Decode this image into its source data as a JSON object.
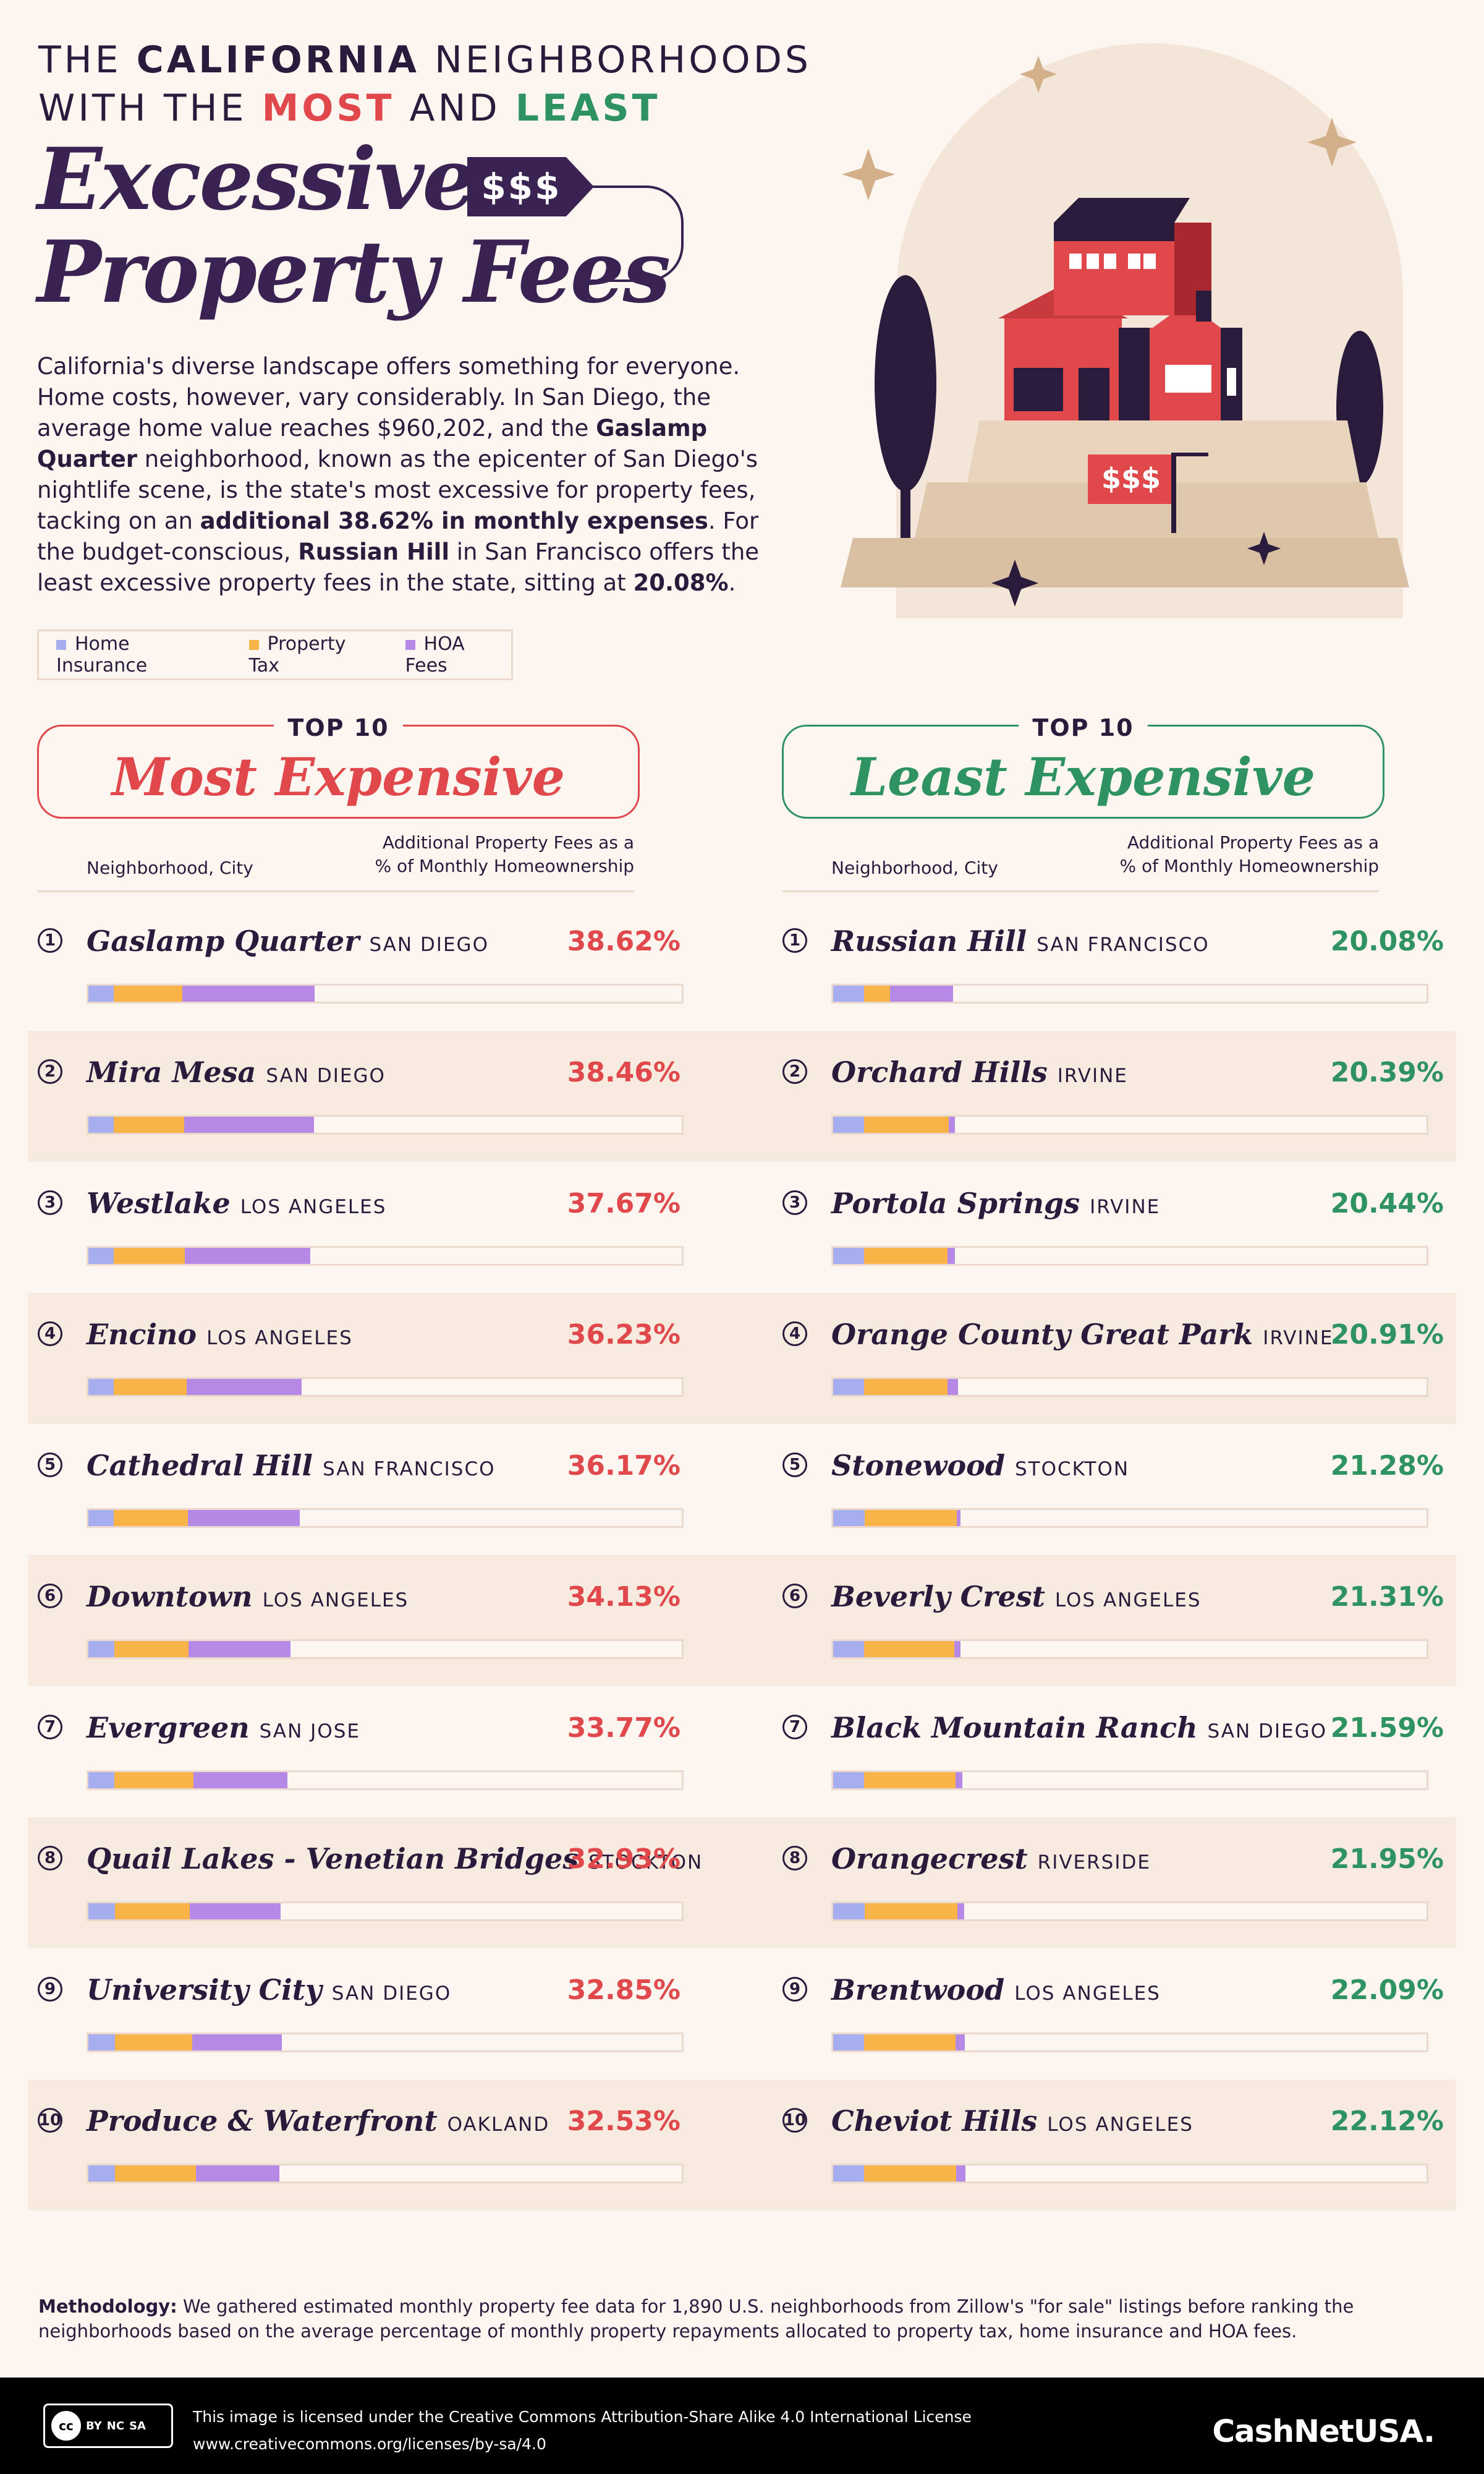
{
  "header": {
    "line1_pre": "THE ",
    "line1_bold": "CALIFORNIA",
    "line1_post": " NEIGHBORHOODS",
    "line2_pre": "WITH THE ",
    "line2_most": "MOST",
    "line2_mid": " AND ",
    "line2_least": "LEAST",
    "title_line1": "Excessive",
    "title_line2": "Property Fees",
    "tag": "$$$",
    "sign": "$$$"
  },
  "intro": {
    "p1": "California's diverse landscape offers something for everyone. Home costs, however, vary considerably. In San Diego, the average home value reaches $960,202, and the ",
    "b1": "Gaslamp Quarter",
    "p2": " neighborhood, known as the epicenter of San Diego's nightlife scene, is the state's most excessive for property fees, tacking on an ",
    "b2": "additional 38.62% in monthly expenses",
    "p3": ". For the budget-conscious, ",
    "b3": "Russian Hill",
    "p4": " in San Francisco offers the least excessive property fees in the state, sitting at ",
    "b4": "20.08%",
    "p5": "."
  },
  "legend": [
    {
      "label": "Home Insurance",
      "color": "#a6aef0"
    },
    {
      "label": "Property Tax",
      "color": "#f8b447"
    },
    {
      "label": "HOA Fees",
      "color": "#b689e6"
    }
  ],
  "sections": {
    "most": {
      "top": "TOP 10",
      "label": "Most Expensive",
      "color": "#e0484c"
    },
    "least": {
      "top": "TOP 10",
      "label": "Least Expensive",
      "color": "#2e9360"
    }
  },
  "colheads": {
    "left": "Neighborhood, City",
    "right1": "Additional Property Fees as a",
    "right2": "% of Monthly Homeownership"
  },
  "chart_data": [
    {
      "type": "bar",
      "title": "Most Expensive",
      "categories": [
        "Gaslamp Quarter SAN DIEGO",
        "Mira Mesa SAN DIEGO",
        "Westlake LOS ANGELES",
        "Encino LOS ANGELES",
        "Cathedral Hill SAN FRANCISCO",
        "Downtown LOS ANGELES",
        "Evergreen SAN JOSE",
        "Quail Lakes - Venetian Bridges STOCKTON",
        "University City SAN DIEGO",
        "Produce & Waterfront OAKLAND"
      ],
      "rows": [
        {
          "rank": "1",
          "name": "Gaslamp Quarter",
          "city": "SAN DIEGO",
          "value": "38.62%",
          "ins": 4.2,
          "tax": 11.5,
          "hoa": 22.2
        },
        {
          "rank": "2",
          "name": "Mira Mesa",
          "city": "SAN DIEGO",
          "value": "38.46%",
          "ins": 4.2,
          "tax": 11.8,
          "hoa": 21.8
        },
        {
          "rank": "3",
          "name": "Westlake",
          "city": "LOS ANGELES",
          "value": "37.67%",
          "ins": 4.2,
          "tax": 12.0,
          "hoa": 21.0
        },
        {
          "rank": "4",
          "name": "Encino",
          "city": "LOS ANGELES",
          "value": "36.23%",
          "ins": 4.2,
          "tax": 12.3,
          "hoa": 19.2
        },
        {
          "rank": "5",
          "name": "Cathedral Hill",
          "city": "SAN FRANCISCO",
          "value": "36.17%",
          "ins": 4.2,
          "tax": 12.5,
          "hoa": 18.7
        },
        {
          "rank": "6",
          "name": "Downtown",
          "city": "LOS ANGELES",
          "value": "34.13%",
          "ins": 4.3,
          "tax": 12.5,
          "hoa": 17.0
        },
        {
          "rank": "7",
          "name": "Evergreen",
          "city": "SAN JOSE",
          "value": "33.77%",
          "ins": 4.3,
          "tax": 13.3,
          "hoa": 15.7
        },
        {
          "rank": "8",
          "name": "Quail Lakes - Venetian Bridges",
          "city": "STOCKTON",
          "value": "32.93%",
          "ins": 4.5,
          "tax": 12.5,
          "hoa": 15.2
        },
        {
          "rank": "9",
          "name": "University City",
          "city": "SAN DIEGO",
          "value": "32.85%",
          "ins": 4.5,
          "tax": 12.9,
          "hoa": 15.0
        },
        {
          "rank": "10",
          "name": "Produce & Waterfront",
          "city": "OAKLAND",
          "value": "32.53%",
          "ins": 4.5,
          "tax": 13.5,
          "hoa": 14.0
        }
      ],
      "series": [
        {
          "name": "Home Insurance"
        },
        {
          "name": "Property Tax"
        },
        {
          "name": "HOA Fees"
        }
      ]
    },
    {
      "type": "bar",
      "title": "Least Expensive",
      "categories": [
        "Russian Hill SAN FRANCISCO",
        "Orchard Hills IRVINE",
        "Portola Springs IRVINE",
        "Orange County Great Park IRVINE",
        "Stonewood STOCKTON",
        "Beverly Crest LOS ANGELES",
        "Black Mountain Ranch SAN DIEGO",
        "Orangecrest RIVERSIDE",
        "Brentwood LOS ANGELES",
        "Cheviot Hills LOS ANGELES"
      ],
      "rows": [
        {
          "rank": "1",
          "name": "Russian Hill",
          "city": "SAN FRANCISCO",
          "value": "20.08%",
          "ins": 5.2,
          "tax": 4.3,
          "hoa": 10.58
        },
        {
          "rank": "2",
          "name": "Orchard Hills",
          "city": "IRVINE",
          "value": "20.39%",
          "ins": 5.2,
          "tax": 14.2,
          "hoa": 0.99
        },
        {
          "rank": "3",
          "name": "Portola Springs",
          "city": "IRVINE",
          "value": "20.44%",
          "ins": 5.2,
          "tax": 14.0,
          "hoa": 1.24
        },
        {
          "rank": "4",
          "name": "Orange County Great Park",
          "city": "IRVINE",
          "value": "20.91%",
          "ins": 5.2,
          "tax": 14.0,
          "hoa": 1.71
        },
        {
          "rank": "5",
          "name": "Stonewood",
          "city": "STOCKTON",
          "value": "21.28%",
          "ins": 5.3,
          "tax": 15.4,
          "hoa": 0.58
        },
        {
          "rank": "6",
          "name": "Beverly Crest",
          "city": "LOS ANGELES",
          "value": "21.31%",
          "ins": 5.2,
          "tax": 15.1,
          "hoa": 1.01
        },
        {
          "rank": "7",
          "name": "Black Mountain Ranch",
          "city": "SAN DIEGO",
          "value": "21.59%",
          "ins": 5.2,
          "tax": 15.3,
          "hoa": 1.09
        },
        {
          "rank": "8",
          "name": "Orangecrest",
          "city": "RIVERSIDE",
          "value": "21.95%",
          "ins": 5.3,
          "tax": 15.5,
          "hoa": 1.15
        },
        {
          "rank": "9",
          "name": "Brentwood",
          "city": "LOS ANGELES",
          "value": "22.09%",
          "ins": 5.2,
          "tax": 15.3,
          "hoa": 1.59
        },
        {
          "rank": "10",
          "name": "Cheviot Hills",
          "city": "LOS ANGELES",
          "value": "22.12%",
          "ins": 5.2,
          "tax": 15.4,
          "hoa": 1.52
        }
      ],
      "series": [
        {
          "name": "Home Insurance"
        },
        {
          "name": "Property Tax"
        },
        {
          "name": "HOA Fees"
        }
      ]
    }
  ],
  "methodology": {
    "label": "Methodology:",
    "text": " We gathered estimated monthly property fee data for 1,890 U.S. neighborhoods from Zillow's \"for sale\" listings before ranking the neighborhoods based on the average percentage of monthly property repayments allocated to property tax, home insurance and HOA fees."
  },
  "footer": {
    "cc": [
      "cc",
      "BY",
      "NC",
      "SA"
    ],
    "license1": "This image is licensed under the Creative Commons Attribution-Share Alike 4.0 International License",
    "license2": "www.creativecommons.org/licenses/by-sa/4.0",
    "brand": "CashNetUSA."
  }
}
